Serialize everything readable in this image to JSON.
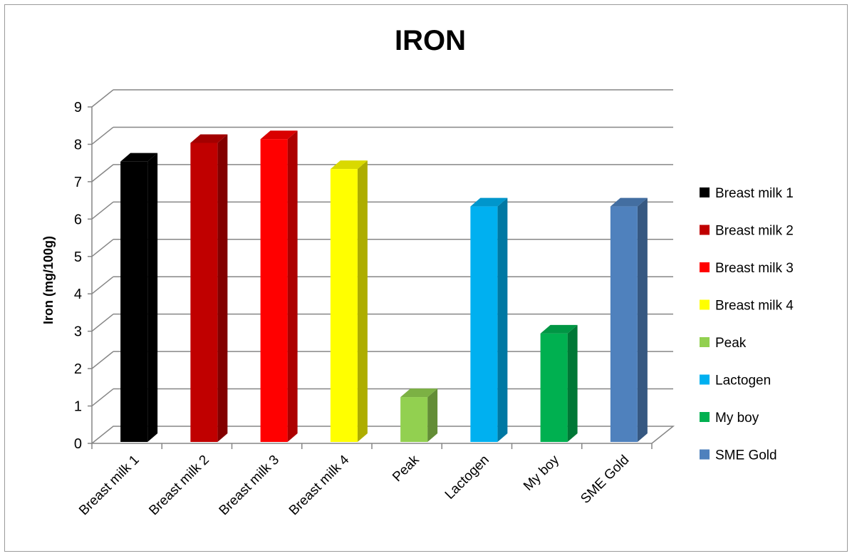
{
  "chart_data": {
    "type": "bar",
    "title": "IRON",
    "xlabel": "",
    "ylabel": "Iron (mg/100g)",
    "ylim": [
      0,
      9
    ],
    "yticks": [
      "0",
      "1",
      "2",
      "3",
      "4",
      "5",
      "6",
      "7",
      "8",
      "9"
    ],
    "grid": true,
    "three_d": true,
    "legend_position": "right",
    "categories": [
      "Breast milk 1",
      "Breast milk 2",
      "Breast milk 3",
      "Breast milk 4",
      "Peak",
      "Lactogen",
      "My boy",
      "SME Gold"
    ],
    "values": [
      7.5,
      8.0,
      8.1,
      7.3,
      1.2,
      6.3,
      2.9,
      6.3
    ],
    "colors": [
      "#000000",
      "#c00000",
      "#ff0000",
      "#ffff00",
      "#92d050",
      "#00b0f0",
      "#00b050",
      "#4f81bd"
    ],
    "legend": [
      "Breast milk 1",
      "Breast milk 2",
      "Breast milk 3",
      "Breast milk 4",
      "Peak",
      "Lactogen",
      "My boy",
      "SME Gold"
    ]
  }
}
